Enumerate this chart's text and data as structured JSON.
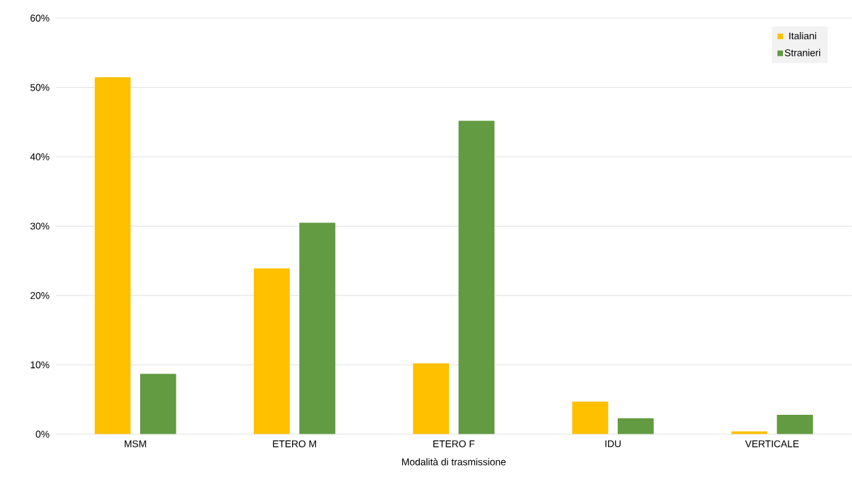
{
  "chart_data": {
    "type": "bar",
    "xlabel": "Modalità di trasmissione",
    "categories": [
      "MSM",
      "ETERO M",
      "ETERO F",
      "IDU",
      "VERTICALE"
    ],
    "series": [
      {
        "name": "Italiani",
        "color": "#ffc000",
        "values": [
          51.5,
          23.9,
          10.2,
          4.7,
          0.4
        ]
      },
      {
        "name": "Stranieri",
        "color": "#629b41",
        "values": [
          8.7,
          30.5,
          45.2,
          2.3,
          2.8
        ]
      }
    ],
    "ylim": [
      0,
      60
    ],
    "yticks": [
      {
        "value": 0,
        "label": "0%"
      },
      {
        "value": 10,
        "label": "10%"
      },
      {
        "value": 20,
        "label": "20%"
      },
      {
        "value": 30,
        "label": "30%"
      },
      {
        "value": 40,
        "label": "40%"
      },
      {
        "value": 50,
        "label": "50%"
      },
      {
        "value": 60,
        "label": "60%"
      }
    ],
    "grid": "y",
    "legend": "top right"
  }
}
